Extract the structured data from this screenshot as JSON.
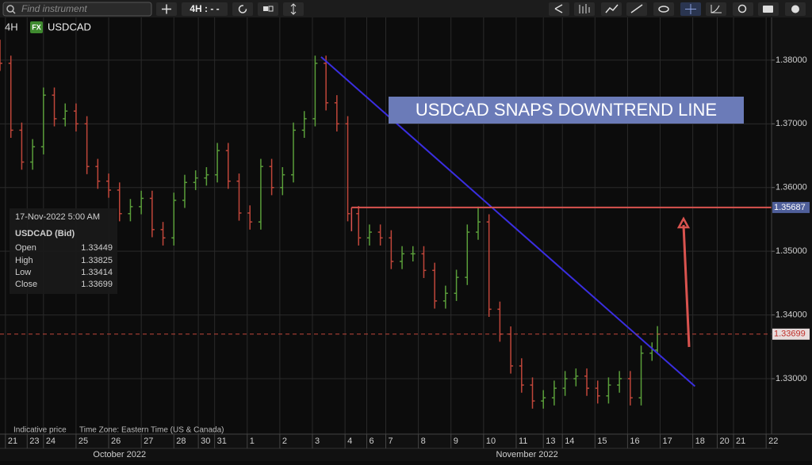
{
  "toolbar": {
    "search_placeholder": "Find instrument",
    "interval_button": "4H : - -"
  },
  "header": {
    "interval": "4H",
    "badge": "FX",
    "symbol": "USDCAD"
  },
  "info_panel": {
    "datetime": "17-Nov-2022 5:00 AM",
    "instrument": "USDCAD (Bid)",
    "labels": [
      "Open",
      "High",
      "Low",
      "Close"
    ]
  },
  "footer": {
    "note": "Indicative price",
    "timezone": "Time Zone: Eastern Time (US & Canada)"
  },
  "chart_data": {
    "type": "ohlc",
    "annotation": "USDCAD SNAPS DOWNTREND LINE",
    "up_color": "#5a9e3a",
    "down_color": "#c0463a",
    "x": [
      0,
      2,
      4,
      6,
      8,
      10,
      12,
      14,
      16,
      18,
      20,
      22,
      24,
      26,
      28,
      30,
      32,
      34,
      36,
      38,
      40,
      42,
      44,
      46,
      48,
      50,
      52,
      54,
      56,
      58,
      60,
      62,
      64,
      66,
      68,
      70,
      72,
      74,
      76,
      78,
      80,
      82,
      84,
      86,
      88,
      90,
      92,
      94,
      96,
      98,
      100,
      102,
      104,
      106,
      108,
      110,
      112,
      114,
      116,
      118,
      120,
      121
    ],
    "open": [
      1.382,
      1.3795,
      1.369,
      1.364,
      1.3664,
      1.3745,
      1.3708,
      1.372,
      1.37,
      1.3633,
      1.361,
      1.3596,
      1.3559,
      1.357,
      1.3583,
      1.3534,
      1.3521,
      1.358,
      1.3608,
      1.3615,
      1.362,
      1.3658,
      1.361,
      1.356,
      1.3546,
      1.3633,
      1.36,
      1.362,
      1.369,
      1.3708,
      1.3795,
      1.3733,
      1.37,
      1.3559,
      1.3521,
      1.353,
      1.3521,
      1.3484,
      1.3496,
      1.3496,
      1.347,
      1.3422,
      1.3434,
      1.3459,
      1.353,
      1.3546,
      1.3409,
      1.337,
      1.332,
      1.329,
      1.3265,
      1.327,
      1.3285,
      1.33,
      1.3304,
      1.3285,
      1.3273,
      1.329,
      1.33,
      1.327,
      1.334,
      1.33449
    ],
    "high": [
      1.3832,
      1.3807,
      1.3702,
      1.3676,
      1.3757,
      1.3757,
      1.3732,
      1.3732,
      1.3712,
      1.3645,
      1.3622,
      1.3608,
      1.3582,
      1.3595,
      1.3595,
      1.3546,
      1.3592,
      1.362,
      1.3627,
      1.3632,
      1.367,
      1.367,
      1.3622,
      1.3572,
      1.3645,
      1.3645,
      1.3632,
      1.3702,
      1.372,
      1.3807,
      1.3807,
      1.3745,
      1.3712,
      1.3571,
      1.3542,
      1.3542,
      1.3533,
      1.3508,
      1.3508,
      1.3508,
      1.3482,
      1.3446,
      1.3471,
      1.3542,
      1.357,
      1.3558,
      1.3421,
      1.3382,
      1.3332,
      1.3302,
      1.3282,
      1.3297,
      1.3312,
      1.3316,
      1.3316,
      1.3297,
      1.3302,
      1.3312,
      1.3312,
      1.3352,
      1.3357,
      1.33825
    ],
    "low": [
      1.3783,
      1.3678,
      1.3628,
      1.3628,
      1.3652,
      1.3696,
      1.3696,
      1.3688,
      1.3621,
      1.3598,
      1.3584,
      1.3547,
      1.3547,
      1.3558,
      1.3522,
      1.3509,
      1.3509,
      1.3568,
      1.3596,
      1.3603,
      1.3608,
      1.3598,
      1.3548,
      1.3534,
      1.3534,
      1.3588,
      1.3588,
      1.3608,
      1.3678,
      1.3696,
      1.3721,
      1.3688,
      1.3547,
      1.3509,
      1.3509,
      1.3509,
      1.3472,
      1.3472,
      1.3484,
      1.3458,
      1.341,
      1.341,
      1.3422,
      1.3447,
      1.3518,
      1.3397,
      1.3358,
      1.3308,
      1.3278,
      1.3253,
      1.3253,
      1.3258,
      1.3273,
      1.3288,
      1.3273,
      1.3261,
      1.3261,
      1.3278,
      1.3258,
      1.3258,
      1.3328,
      1.33414
    ],
    "close": [
      1.3795,
      1.369,
      1.364,
      1.3664,
      1.3745,
      1.3708,
      1.372,
      1.37,
      1.3633,
      1.361,
      1.3596,
      1.3559,
      1.357,
      1.3583,
      1.3534,
      1.3521,
      1.358,
      1.3608,
      1.3615,
      1.362,
      1.3658,
      1.361,
      1.356,
      1.3546,
      1.3633,
      1.36,
      1.362,
      1.369,
      1.3708,
      1.3795,
      1.3733,
      1.37,
      1.3559,
      1.3521,
      1.353,
      1.3521,
      1.3484,
      1.3496,
      1.3496,
      1.347,
      1.3422,
      1.3434,
      1.3459,
      1.353,
      1.3546,
      1.3409,
      1.337,
      1.332,
      1.329,
      1.3265,
      1.327,
      1.3285,
      1.33,
      1.3304,
      1.3285,
      1.3273,
      1.329,
      1.33,
      1.327,
      1.334,
      1.3345,
      1.33699
    ],
    "trendline": {
      "x": [
        59.1,
        127.9
      ],
      "y": [
        1.3805,
        1.3288
      ],
      "color": "#3a2ee0"
    },
    "level_line": {
      "x_start": 64.7,
      "value": 1.35687,
      "color": "#d9534f"
    },
    "xlim": [
      0,
      142
    ],
    "ylim": [
      1.3213,
      1.3867
    ],
    "yticks": [
      {
        "value": 1.33,
        "label": "1.33000"
      },
      {
        "value": 1.34,
        "label": "1.34000"
      },
      {
        "value": 1.35,
        "label": "1.35000"
      },
      {
        "value": 1.36,
        "label": "1.36000"
      },
      {
        "value": 1.37,
        "label": "1.37000"
      },
      {
        "value": 1.38,
        "label": "1.38000"
      }
    ],
    "xticks": [
      {
        "value": 1,
        "label": "21"
      },
      {
        "value": 5,
        "label": "23"
      },
      {
        "value": 8,
        "label": "24"
      },
      {
        "value": 14,
        "label": "25"
      },
      {
        "value": 20,
        "label": "26"
      },
      {
        "value": 26,
        "label": "27"
      },
      {
        "value": 32,
        "label": "28"
      },
      {
        "value": 36.5,
        "label": "30"
      },
      {
        "value": 39.5,
        "label": "31"
      },
      {
        "value": 45.5,
        "label": "1"
      },
      {
        "value": 51.5,
        "label": "2"
      },
      {
        "value": 57.5,
        "label": "3"
      },
      {
        "value": 63.5,
        "label": "4"
      },
      {
        "value": 67.5,
        "label": "6"
      },
      {
        "value": 71,
        "label": "7"
      },
      {
        "value": 77,
        "label": "8"
      },
      {
        "value": 83,
        "label": "9"
      },
      {
        "value": 89,
        "label": "10"
      },
      {
        "value": 95,
        "label": "11"
      },
      {
        "value": 100,
        "label": "13"
      },
      {
        "value": 103.5,
        "label": "14"
      },
      {
        "value": 109.5,
        "label": "15"
      },
      {
        "value": 115.5,
        "label": "16"
      },
      {
        "value": 121.5,
        "label": "17"
      },
      {
        "value": 127.5,
        "label": "18"
      },
      {
        "value": 132,
        "label": "20"
      },
      {
        "value": 135,
        "label": "21"
      },
      {
        "value": 141,
        "label": "22"
      }
    ],
    "months": [
      {
        "value": 22,
        "label": "October 2022"
      },
      {
        "value": 97,
        "label": "November 2022"
      }
    ],
    "grid": true
  }
}
